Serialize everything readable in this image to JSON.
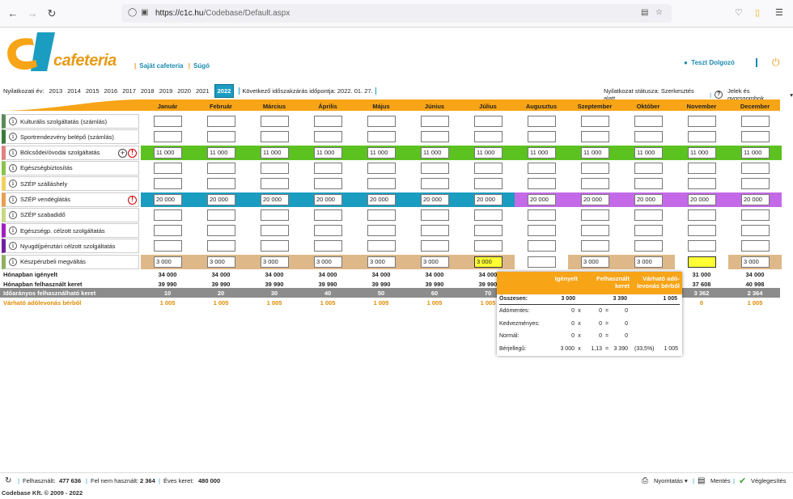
{
  "browser": {
    "url_host": "https://c1c.hu",
    "url_path": "/Codebase/Default.aspx"
  },
  "header": {
    "brand": "cafeteria",
    "links": [
      "Saját cafeteria",
      "Súgó"
    ],
    "user": "Teszt Dolgozó"
  },
  "years": {
    "label": "Nyilatkozati év:",
    "list": [
      "2013",
      "2014",
      "2015",
      "2016",
      "2017",
      "2018",
      "2019",
      "2020",
      "2021"
    ],
    "selected": "2022",
    "next_close": "Következő időszakzárás időpontja: 2022. 01. 27."
  },
  "status": {
    "text": "Nyilatkozat státusza: Szerkesztés alatt",
    "legend": "Jelek és gyorsgombok"
  },
  "months": [
    "Január",
    "Február",
    "Március",
    "Április",
    "Május",
    "Június",
    "Július",
    "Augusztus",
    "Szeptember",
    "Október",
    "November",
    "December"
  ],
  "rows": [
    {
      "label": "Kulturális szolgáltatás (számlás)",
      "color": "#5b8a5b",
      "values": [
        "",
        "",
        "",
        "",
        "",
        "",
        "",
        "",
        "",
        "",
        "",
        ""
      ],
      "fill": []
    },
    {
      "label": "Sportrendezvény belépő (számlás)",
      "color": "#3a7a3a",
      "values": [
        "",
        "",
        "",
        "",
        "",
        "",
        "",
        "",
        "",
        "",
        "",
        ""
      ],
      "fill": []
    },
    {
      "label": "Bölcsődei/óvodai szolgáltatás",
      "color": "#e08080",
      "values": [
        "11 000",
        "11 000",
        "11 000",
        "11 000",
        "11 000",
        "11 000",
        "11 000",
        "11 000",
        "11 000",
        "11 000",
        "11 000",
        "11 000"
      ],
      "fill": [
        "#5cc21f",
        "#5cc21f",
        "#5cc21f",
        "#5cc21f",
        "#5cc21f",
        "#5cc21f",
        "#5cc21f",
        "#5cc21f",
        "#5cc21f",
        "#5cc21f",
        "#5cc21f",
        "#5cc21f"
      ],
      "plus": true,
      "warn": "!"
    },
    {
      "label": "Egészségbiztosítás",
      "color": "#8bc34a",
      "values": [
        "",
        "",
        "",
        "",
        "",
        "",
        "",
        "",
        "",
        "",
        "",
        ""
      ],
      "fill": []
    },
    {
      "label": "SZÉP szálláshely",
      "color": "#f0d060",
      "values": [
        "",
        "",
        "",
        "",
        "",
        "",
        "",
        "",
        "",
        "",
        "",
        ""
      ],
      "fill": []
    },
    {
      "label": "SZÉP vendéglátás",
      "color": "#e8a050",
      "values": [
        "20 000",
        "20 000",
        "20 000",
        "20 000",
        "20 000",
        "20 000",
        "20 000",
        "20 000",
        "20 000",
        "20 000",
        "20 000",
        "20 000"
      ],
      "fill": [
        "#1b9dc1",
        "#1b9dc1",
        "#1b9dc1",
        "#1b9dc1",
        "#1b9dc1",
        "#1b9dc1",
        "#1b9dc1",
        "#c46ae8",
        "#c46ae8",
        "#c46ae8",
        "#c46ae8",
        "#c46ae8"
      ],
      "warn": "!"
    },
    {
      "label": "SZÉP szabadidő",
      "color": "#c8d880",
      "values": [
        "",
        "",
        "",
        "",
        "",
        "",
        "",
        "",
        "",
        "",
        "",
        ""
      ],
      "fill": []
    },
    {
      "label": "Egészségp. célzott szolgáltatás",
      "color": "#a020c0",
      "values": [
        "",
        "",
        "",
        "",
        "",
        "",
        "",
        "",
        "",
        "",
        "",
        ""
      ],
      "fill": []
    },
    {
      "label": "Nyugdíjpénztári célzott szolgáltatás",
      "color": "#7020a0",
      "values": [
        "",
        "",
        "",
        "",
        "",
        "",
        "",
        "",
        "",
        "",
        "",
        ""
      ],
      "fill": []
    },
    {
      "label": "Készpénzbeli megváltás",
      "color": "#90b060",
      "values": [
        "3 000",
        "3 000",
        "3 000",
        "3 000",
        "3 000",
        "3 000",
        "3 000",
        "",
        "3 000",
        "3 000",
        "",
        "3 000"
      ],
      "fill": [
        "#dfb88a",
        "#dfb88a",
        "#dfb88a",
        "#dfb88a",
        "#dfb88a",
        "#dfb88a",
        "#dfb88a",
        "",
        "#dfb88a",
        "#dfb88a",
        "",
        "#dfb88a"
      ],
      "highlight": [
        6,
        10
      ]
    }
  ],
  "summary": {
    "requested": {
      "label": "Hónapban igényelt",
      "values": [
        "34 000",
        "34 000",
        "34 000",
        "34 000",
        "34 000",
        "34 000",
        "34 000",
        "",
        "",
        "",
        "31 000",
        "34 000"
      ]
    },
    "used": {
      "label": "Hónapban felhasznált keret",
      "values": [
        "39 990",
        "39 990",
        "39 990",
        "39 990",
        "39 990",
        "39 990",
        "39 990",
        "",
        "",
        "",
        "37 608",
        "40 998"
      ]
    },
    "prorated": {
      "label": "Időarányos felhasználható keret",
      "values": [
        "10",
        "20",
        "30",
        "40",
        "50",
        "60",
        "70",
        "",
        "",
        "",
        "3 362",
        "2 364"
      ]
    },
    "tax": {
      "label": "Várható adólevonás bérből",
      "values": [
        "1 005",
        "1 005",
        "1 005",
        "1 005",
        "1 005",
        "1 005",
        "1 005",
        "",
        "",
        "",
        "0",
        "1 005"
      ]
    }
  },
  "popup": {
    "headers": [
      "Igényelt",
      "Felhasznált keret",
      "Várható adó-levonás bérből"
    ],
    "total_label": "Összesen:",
    "total": [
      "3 000",
      "3 390",
      "1 005"
    ],
    "lines": [
      {
        "label": "Adómentes:",
        "a": "0",
        "op1": "x",
        "b": "0",
        "op2": "=",
        "c": "0",
        "d": "",
        "e": ""
      },
      {
        "label": "Kedvezményes:",
        "a": "0",
        "op1": "x",
        "b": "0",
        "op2": "=",
        "c": "0",
        "d": "",
        "e": ""
      },
      {
        "label": "Normál:",
        "a": "0",
        "op1": "x",
        "b": "0",
        "op2": "=",
        "c": "0",
        "d": "",
        "e": ""
      },
      {
        "label": "Bérjellegű:",
        "a": "3 000",
        "op1": "x",
        "b": "1,13",
        "op2": "=",
        "c": "3 390",
        "d": "(33,5%)",
        "e": "1 005"
      }
    ]
  },
  "footer": {
    "used_label": "Felhasznált:",
    "used": "477 636",
    "unused_label": "Fel nem használt:",
    "unused": "2 364",
    "annual_label": "Éves keret:",
    "annual": "480 000",
    "print": "Nyomtatás",
    "save": "Mentés",
    "finalize": "Véglegesítés"
  },
  "copyright": "Codebase Kft. © 2009 - 2022"
}
